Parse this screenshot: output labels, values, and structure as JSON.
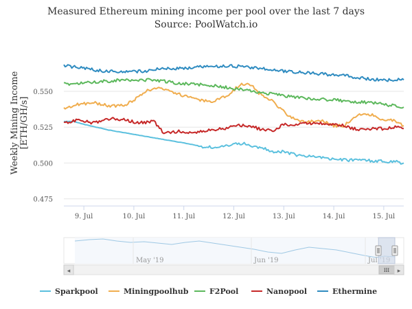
{
  "chart_data": {
    "type": "line",
    "title": "Measured Ethereum mining income per pool over the last 7 days",
    "subtitle": "Source: PoolWatch.io",
    "ylabel": "Weekly Mining Income [ETH/GH/s]",
    "ylim": [
      0.47,
      0.585
    ],
    "yticks": [
      0.475,
      0.5,
      0.525,
      0.55
    ],
    "ytick_labels": [
      "0.475",
      "0.500",
      "0.525",
      "0.550"
    ],
    "xlim": [
      8.6,
      15.4
    ],
    "xticks": [
      9,
      10,
      11,
      12,
      13,
      14,
      15
    ],
    "xtick_labels": [
      "9. Jul",
      "10. Jul",
      "11. Jul",
      "12. Jul",
      "13. Jul",
      "14. Jul",
      "15. Jul"
    ],
    "grid": "horizontal",
    "legend_position": "bottom",
    "series": [
      {
        "name": "Sparkpool",
        "color": "#5bc0de",
        "x": [
          8.6,
          8.8,
          9.0,
          9.5,
          10.0,
          10.5,
          11.0,
          11.3,
          11.35,
          11.6,
          11.9,
          12.1,
          12.4,
          12.6,
          12.8,
          13.0,
          13.2,
          13.4,
          13.7,
          14.0,
          14.3,
          14.6,
          15.0,
          15.2,
          15.4
        ],
        "y": [
          0.529,
          0.529,
          0.527,
          0.523,
          0.52,
          0.517,
          0.514,
          0.512,
          0.511,
          0.511,
          0.512,
          0.514,
          0.512,
          0.51,
          0.508,
          0.508,
          0.506,
          0.505,
          0.504,
          0.503,
          0.502,
          0.502,
          0.501,
          0.501,
          0.5
        ]
      },
      {
        "name": "Miningpoolhub",
        "color": "#f0ad4e",
        "x": [
          8.6,
          8.9,
          9.2,
          9.5,
          9.8,
          10.1,
          10.3,
          10.5,
          10.8,
          11.0,
          11.3,
          11.6,
          11.9,
          12.1,
          12.3,
          12.5,
          12.7,
          12.9,
          13.1,
          13.3,
          13.5,
          13.8,
          14.0,
          14.2,
          14.4,
          14.6,
          14.8,
          15.0,
          15.2,
          15.4
        ],
        "y": [
          0.538,
          0.541,
          0.542,
          0.54,
          0.54,
          0.546,
          0.551,
          0.553,
          0.549,
          0.547,
          0.544,
          0.543,
          0.548,
          0.554,
          0.556,
          0.549,
          0.545,
          0.539,
          0.533,
          0.529,
          0.529,
          0.529,
          0.526,
          0.526,
          0.532,
          0.535,
          0.533,
          0.53,
          0.53,
          0.526
        ]
      },
      {
        "name": "F2Pool",
        "color": "#5cb85c",
        "x": [
          8.6,
          9.0,
          9.4,
          9.8,
          10.2,
          10.4,
          10.8,
          11.2,
          11.6,
          12.0,
          12.4,
          12.8,
          13.2,
          13.6,
          14.0,
          14.4,
          14.8,
          15.2,
          15.4
        ],
        "y": [
          0.555,
          0.556,
          0.557,
          0.558,
          0.558,
          0.558,
          0.556,
          0.555,
          0.554,
          0.552,
          0.55,
          0.548,
          0.546,
          0.545,
          0.544,
          0.543,
          0.542,
          0.54,
          0.539
        ]
      },
      {
        "name": "Nanopool",
        "color": "#c62828",
        "x": [
          8.6,
          8.9,
          9.2,
          9.5,
          9.8,
          10.1,
          10.4,
          10.6,
          10.9,
          11.2,
          11.5,
          11.8,
          12.1,
          12.3,
          12.5,
          12.8,
          13.0,
          13.3,
          13.6,
          13.9,
          14.2,
          14.5,
          14.7,
          15.0,
          15.2,
          15.4
        ],
        "y": [
          0.528,
          0.53,
          0.528,
          0.531,
          0.53,
          0.528,
          0.529,
          0.521,
          0.522,
          0.521,
          0.523,
          0.524,
          0.526,
          0.526,
          0.524,
          0.522,
          0.527,
          0.527,
          0.528,
          0.527,
          0.526,
          0.523,
          0.524,
          0.524,
          0.525,
          0.524
        ]
      },
      {
        "name": "Ethermine",
        "color": "#2e8bc0",
        "x": [
          8.6,
          9.0,
          9.4,
          9.8,
          10.2,
          10.6,
          11.0,
          11.3,
          11.6,
          11.9,
          12.2,
          12.6,
          13.0,
          13.4,
          13.8,
          14.2,
          14.6,
          15.0,
          15.4
        ],
        "y": [
          0.568,
          0.566,
          0.564,
          0.564,
          0.564,
          0.566,
          0.566,
          0.567,
          0.567,
          0.568,
          0.567,
          0.566,
          0.564,
          0.563,
          0.562,
          0.561,
          0.559,
          0.558,
          0.558
        ]
      }
    ]
  },
  "navigator": {
    "labels": [
      "May '19",
      "Jun '19",
      "Jul '19"
    ]
  },
  "scrollbar": {
    "left_arrow": "◂",
    "right_arrow": "▸",
    "grip": "III"
  }
}
